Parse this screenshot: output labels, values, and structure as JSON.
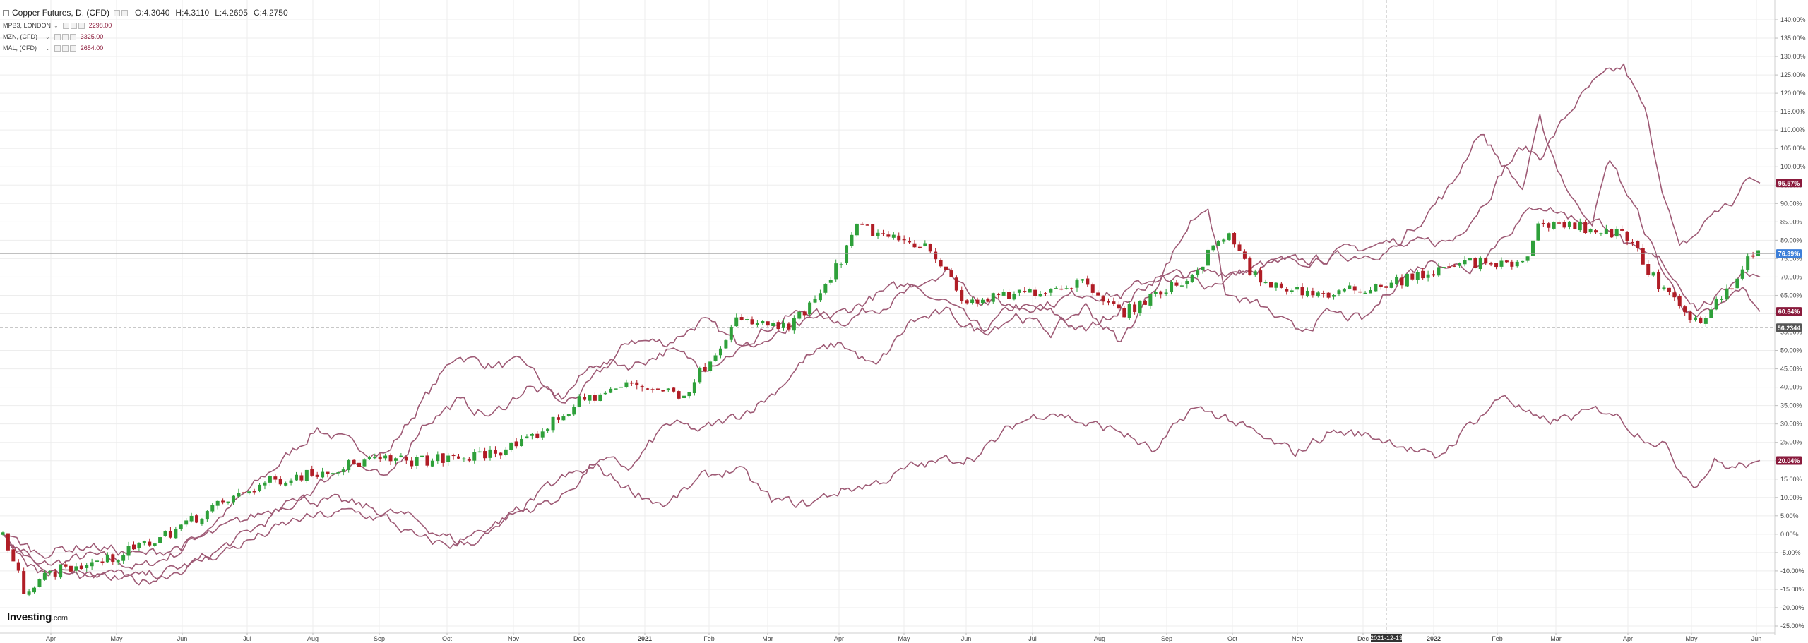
{
  "legend": {
    "main": {
      "name": "Copper Futures, D, (CFD)",
      "open": "O:4.3040",
      "high": "H:4.3110",
      "low": "L:4.2695",
      "close": "C:4.2750"
    },
    "overlays": [
      {
        "name": "MPB3, LONDON",
        "value": "2298.00"
      },
      {
        "name": "MZN, (CFD)",
        "value": "3325.00"
      },
      {
        "name": "MAL, (CFD)",
        "value": "2654.00"
      }
    ]
  },
  "logo": {
    "main": "Investing",
    "suffix": ".com"
  },
  "colors": {
    "up": "#2ea03a",
    "down": "#b01d26",
    "overlay": "#9e5a75",
    "grid": "#ededed",
    "copper_badge": "#3d7fd9",
    "overlay_badge": "#8a1a3c",
    "dashed_badge": "#555555"
  },
  "chart_data": {
    "type": "candlestick",
    "x_tick_labels": [
      "Apr",
      "May",
      "Jun",
      "Jul",
      "Aug",
      "Sep",
      "Oct",
      "Nov",
      "Dec",
      "2021",
      "Feb",
      "Mar",
      "Apr",
      "May",
      "Jun",
      "Jul",
      "Aug",
      "Sep",
      "Oct",
      "Nov",
      "Dec",
      "2021-12-13",
      "2022",
      "Feb",
      "Mar",
      "Apr",
      "May",
      "Jun"
    ],
    "y_ticks": [
      "140.00%",
      "135.00%",
      "130.00%",
      "125.00%",
      "120.00%",
      "115.00%",
      "110.00%",
      "105.00%",
      "100.00%",
      "95.00%",
      "90.00%",
      "85.00%",
      "80.00%",
      "75.00%",
      "70.00%",
      "65.00%",
      "60.00%",
      "55.00%",
      "50.00%",
      "45.00%",
      "40.00%",
      "35.00%",
      "30.00%",
      "25.00%",
      "20.00%",
      "15.00%",
      "10.00%",
      "5.00%",
      "0.00%",
      "-5.00%",
      "-10.00%",
      "-15.00%",
      "-20.00%",
      "-25.00%"
    ],
    "ylim": [
      -25,
      142
    ],
    "crosshair": {
      "x_label": "2021-12-13",
      "y_label": "56.2344",
      "y_value": 56.2
    },
    "last_values": [
      {
        "label": "95.57%",
        "value": 95.57,
        "kind": "overlay"
      },
      {
        "label": "76.39%",
        "value": 76.39,
        "kind": "copper"
      },
      {
        "label": "60.64%",
        "value": 60.64,
        "kind": "overlay"
      },
      {
        "label": "20.04%",
        "value": 20.04,
        "kind": "overlay"
      }
    ],
    "copper_line_value": 76.39,
    "copper_keypoints": [
      [
        0,
        0
      ],
      [
        12,
        -15
      ],
      [
        30,
        -10
      ],
      [
        60,
        -7
      ],
      [
        90,
        -1
      ],
      [
        120,
        7
      ],
      [
        150,
        14
      ],
      [
        180,
        17
      ],
      [
        210,
        20
      ],
      [
        240,
        20
      ],
      [
        270,
        21
      ],
      [
        300,
        25
      ],
      [
        330,
        36
      ],
      [
        360,
        41
      ],
      [
        390,
        38
      ],
      [
        420,
        58
      ],
      [
        450,
        56
      ],
      [
        470,
        66
      ],
      [
        490,
        84
      ],
      [
        510,
        80
      ],
      [
        530,
        79
      ],
      [
        550,
        63
      ],
      [
        580,
        65
      ],
      [
        600,
        67
      ],
      [
        620,
        69
      ],
      [
        640,
        60
      ],
      [
        660,
        65
      ],
      [
        680,
        70
      ],
      [
        700,
        82
      ],
      [
        720,
        68
      ],
      [
        760,
        65
      ],
      [
        800,
        69
      ],
      [
        840,
        74
      ],
      [
        870,
        73
      ],
      [
        880,
        85
      ],
      [
        900,
        84
      ],
      [
        930,
        81
      ],
      [
        950,
        66
      ],
      [
        970,
        58
      ],
      [
        990,
        67
      ],
      [
        1001,
        76.39
      ]
    ],
    "overlay_series": [
      {
        "keypoints": [
          [
            0,
            0
          ],
          [
            20,
            -9
          ],
          [
            50,
            -6
          ],
          [
            80,
            -9
          ],
          [
            100,
            -5
          ],
          [
            130,
            7
          ],
          [
            160,
            20
          ],
          [
            180,
            29
          ],
          [
            200,
            24
          ],
          [
            220,
            22
          ],
          [
            240,
            36
          ],
          [
            260,
            49
          ],
          [
            280,
            46
          ],
          [
            300,
            46
          ],
          [
            320,
            35
          ],
          [
            335,
            40
          ],
          [
            360,
            53
          ],
          [
            380,
            52
          ],
          [
            400,
            58
          ],
          [
            420,
            52
          ],
          [
            440,
            57
          ],
          [
            460,
            61
          ],
          [
            480,
            58
          ],
          [
            500,
            62
          ],
          [
            520,
            66
          ],
          [
            540,
            63
          ],
          [
            560,
            55
          ],
          [
            580,
            62
          ],
          [
            600,
            60
          ],
          [
            620,
            55
          ],
          [
            640,
            62
          ],
          [
            660,
            70
          ],
          [
            690,
            68
          ],
          [
            720,
            73
          ],
          [
            760,
            75
          ],
          [
            800,
            78
          ],
          [
            830,
            80
          ],
          [
            850,
            92
          ],
          [
            860,
            100
          ],
          [
            870,
            105
          ],
          [
            880,
            103
          ],
          [
            890,
            110
          ],
          [
            900,
            117
          ],
          [
            910,
            122
          ],
          [
            920,
            125
          ],
          [
            928,
            127
          ],
          [
            940,
            115
          ],
          [
            950,
            95
          ],
          [
            960,
            77
          ],
          [
            970,
            82
          ],
          [
            980,
            88
          ],
          [
            990,
            90
          ],
          [
            1000,
            97
          ],
          [
            1006,
            95.57
          ]
        ]
      },
      {
        "keypoints": [
          [
            0,
            0
          ],
          [
            20,
            -8
          ],
          [
            50,
            -10
          ],
          [
            80,
            -12
          ],
          [
            110,
            -8
          ],
          [
            140,
            0
          ],
          [
            170,
            10
          ],
          [
            200,
            20
          ],
          [
            220,
            14
          ],
          [
            240,
            30
          ],
          [
            260,
            36
          ],
          [
            280,
            32
          ],
          [
            300,
            40
          ],
          [
            320,
            37
          ],
          [
            340,
            47
          ],
          [
            360,
            46
          ],
          [
            380,
            50
          ],
          [
            400,
            46
          ],
          [
            420,
            50
          ],
          [
            440,
            53
          ],
          [
            460,
            57
          ],
          [
            480,
            60
          ],
          [
            500,
            65
          ],
          [
            520,
            68
          ],
          [
            540,
            72
          ],
          [
            560,
            64
          ],
          [
            580,
            62
          ],
          [
            600,
            63
          ],
          [
            620,
            66
          ],
          [
            640,
            65
          ],
          [
            660,
            70
          ],
          [
            690,
            71
          ],
          [
            720,
            73
          ],
          [
            760,
            76
          ],
          [
            800,
            80
          ],
          [
            830,
            95
          ],
          [
            845,
            110
          ],
          [
            860,
            100
          ],
          [
            870,
            94
          ],
          [
            880,
            112
          ],
          [
            890,
            100
          ],
          [
            900,
            90
          ],
          [
            910,
            86
          ],
          [
            920,
            102
          ],
          [
            935,
            88
          ],
          [
            950,
            72
          ],
          [
            960,
            64
          ],
          [
            970,
            58
          ],
          [
            985,
            62
          ],
          [
            995,
            67
          ],
          [
            1006,
            60.64
          ]
        ]
      },
      {
        "keypoints": [
          [
            0,
            0
          ],
          [
            20,
            -5
          ],
          [
            50,
            -3
          ],
          [
            80,
            -6
          ],
          [
            110,
            -2
          ],
          [
            140,
            4
          ],
          [
            170,
            10
          ],
          [
            200,
            8
          ],
          [
            230,
            5
          ],
          [
            260,
            -2
          ],
          [
            290,
            5
          ],
          [
            320,
            10
          ],
          [
            340,
            20
          ],
          [
            360,
            18
          ],
          [
            380,
            30
          ],
          [
            400,
            28
          ],
          [
            420,
            32
          ],
          [
            440,
            38
          ],
          [
            460,
            48
          ],
          [
            480,
            52
          ],
          [
            500,
            45
          ],
          [
            520,
            58
          ],
          [
            540,
            60
          ],
          [
            560,
            55
          ],
          [
            580,
            60
          ],
          [
            600,
            55
          ],
          [
            620,
            62
          ],
          [
            640,
            52
          ],
          [
            660,
            68
          ],
          [
            680,
            85
          ],
          [
            690,
            90
          ],
          [
            700,
            65
          ],
          [
            720,
            62
          ],
          [
            740,
            55
          ],
          [
            760,
            60
          ],
          [
            780,
            58
          ],
          [
            800,
            70
          ],
          [
            820,
            75
          ],
          [
            840,
            72
          ],
          [
            860,
            82
          ],
          [
            880,
            90
          ],
          [
            900,
            86
          ],
          [
            920,
            84
          ],
          [
            935,
            76
          ],
          [
            950,
            74
          ],
          [
            970,
            62
          ],
          [
            985,
            65
          ],
          [
            995,
            72
          ],
          [
            1006,
            70
          ]
        ]
      },
      {
        "keypoints": [
          [
            0,
            0
          ],
          [
            20,
            -10
          ],
          [
            50,
            -12
          ],
          [
            80,
            -13
          ],
          [
            110,
            -8
          ],
          [
            140,
            -2
          ],
          [
            170,
            4
          ],
          [
            200,
            6
          ],
          [
            220,
            4
          ],
          [
            240,
            -2
          ],
          [
            260,
            -3
          ],
          [
            280,
            0
          ],
          [
            300,
            8
          ],
          [
            320,
            15
          ],
          [
            340,
            18
          ],
          [
            360,
            12
          ],
          [
            380,
            8
          ],
          [
            400,
            15
          ],
          [
            420,
            18
          ],
          [
            440,
            9
          ],
          [
            460,
            8
          ],
          [
            480,
            12
          ],
          [
            500,
            14
          ],
          [
            520,
            18
          ],
          [
            540,
            20
          ],
          [
            560,
            22
          ],
          [
            580,
            30
          ],
          [
            600,
            34
          ],
          [
            620,
            30
          ],
          [
            640,
            28
          ],
          [
            660,
            22
          ],
          [
            680,
            34
          ],
          [
            700,
            32
          ],
          [
            720,
            26
          ],
          [
            740,
            22
          ],
          [
            760,
            28
          ],
          [
            780,
            27
          ],
          [
            800,
            25
          ],
          [
            820,
            20
          ],
          [
            840,
            30
          ],
          [
            860,
            38
          ],
          [
            880,
            30
          ],
          [
            900,
            32
          ],
          [
            920,
            34
          ],
          [
            935,
            28
          ],
          [
            950,
            25
          ],
          [
            960,
            18
          ],
          [
            970,
            14
          ],
          [
            980,
            20
          ],
          [
            990,
            18
          ],
          [
            1006,
            20.04
          ]
        ]
      }
    ]
  }
}
